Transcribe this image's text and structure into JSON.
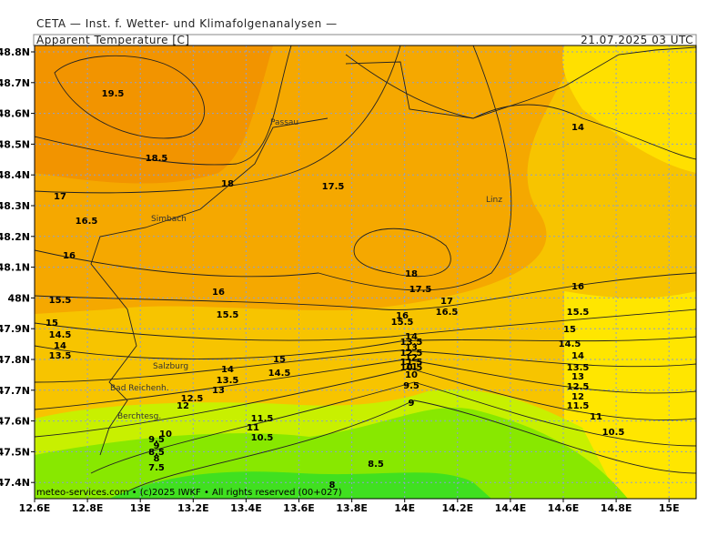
{
  "header": {
    "institute": "CETA — Inst. f. Wetter- und Klimafolgenanalysen —",
    "variable": "Apparent Temperature [C]",
    "valid_time": "21.07.2025 03 UTC"
  },
  "lat_ticks": [
    "48.8N",
    "48.7N",
    "48.6N",
    "48.5N",
    "48.4N",
    "48.3N",
    "48.2N",
    "48.1N",
    "48N",
    "47.9N",
    "47.8N",
    "47.7N",
    "47.6N",
    "47.5N",
    "47.4N"
  ],
  "lon_ticks": [
    "12.6E",
    "12.8E",
    "13E",
    "13.2E",
    "13.4E",
    "13.6E",
    "13.8E",
    "14E",
    "14.2E",
    "14.4E",
    "14.6E",
    "14.8E",
    "15E"
  ],
  "cities": [
    "Passau",
    "Simbach",
    "Linz",
    "Salzburg",
    "Bad Reichenh.",
    "Berchtesg."
  ],
  "contour_labels": [
    "19.5",
    "18.5",
    "18",
    "17.5",
    "17",
    "16.5",
    "16",
    "18",
    "17.5",
    "17",
    "16.5",
    "16",
    "15.5",
    "15.5",
    "16",
    "15.5",
    "15",
    "14.5",
    "14",
    "13.5",
    "15",
    "14.5",
    "14",
    "13.5",
    "13",
    "12.5",
    "12",
    "11.5",
    "11",
    "10.5",
    "10",
    "9.5",
    "9",
    "8.5",
    "8",
    "7.5",
    "8.5",
    "8",
    "14",
    "13.5",
    "13",
    "12.5",
    "12",
    "11.5",
    "11",
    "10.5",
    "10",
    "9.5",
    "9",
    "14",
    "16",
    "15.5",
    "15",
    "14.5",
    "14",
    "13.5",
    "13",
    "12.5",
    "12",
    "11.5",
    "11",
    "10.5"
  ],
  "footer": "meteo-services.com • (c)2025 IWKF • All rights reserved (00+027)"
}
